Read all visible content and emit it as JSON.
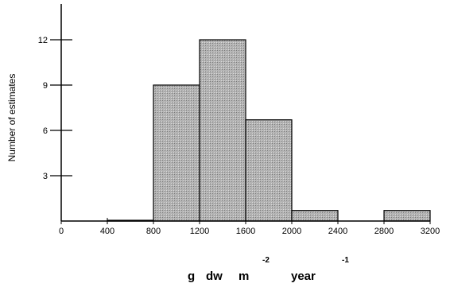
{
  "chart_data": {
    "type": "bar",
    "title": "",
    "ylabel": "Number of estimates",
    "xlabel": {
      "g": "g",
      "dw": "dw",
      "m": "m",
      "m_exp": "-2",
      "year": "year",
      "year_exp": "-1"
    },
    "xlim": [
      0,
      3200
    ],
    "ylim": [
      0,
      14
    ],
    "x_ticks": [
      0,
      400,
      800,
      1200,
      1600,
      2000,
      2400,
      2800,
      3200
    ],
    "y_ticks": [
      3,
      6,
      9,
      12
    ],
    "bins": [
      {
        "x0": 400,
        "x1": 800,
        "value": 0.05
      },
      {
        "x0": 800,
        "x1": 1200,
        "value": 9
      },
      {
        "x0": 1200,
        "x1": 1600,
        "value": 12
      },
      {
        "x0": 1600,
        "x1": 2000,
        "value": 6.7
      },
      {
        "x0": 2000,
        "x1": 2400,
        "value": 0.7
      },
      {
        "x0": 2800,
        "x1": 3200,
        "value": 0.7
      }
    ],
    "bar_fill": "#b3b3b3",
    "grid": false
  }
}
